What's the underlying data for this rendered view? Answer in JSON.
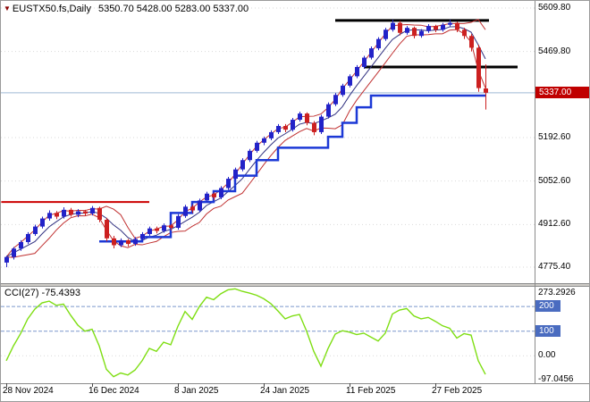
{
  "header": {
    "dropdown_icon": "▼",
    "symbol_timeframe": "EUSTX50.fs,Daily",
    "ohlc": "5350.70 5428.00 5283.00 5337.00",
    "open": "5350.70",
    "high": "5428.00",
    "low": "5283.00",
    "close": "5337.00"
  },
  "price_axis": {
    "labels": [
      {
        "text": "5609.80",
        "price": 5609.8
      },
      {
        "text": "5469.80",
        "price": 5469.8
      },
      {
        "text": "5192.60",
        "price": 5192.6
      },
      {
        "text": "5052.60",
        "price": 5052.6
      },
      {
        "text": "4912.60",
        "price": 4912.6
      },
      {
        "text": "4775.40",
        "price": 4775.4
      }
    ],
    "current": {
      "text": "5337.00",
      "price": 5337.0
    }
  },
  "time_axis": {
    "labels": [
      {
        "text": "28 Nov 2024",
        "bar": 0
      },
      {
        "text": "16 Dec 2024",
        "bar": 12
      },
      {
        "text": "8 Jan 2025",
        "bar": 24
      },
      {
        "text": "24 Jan 2025",
        "bar": 36
      },
      {
        "text": "11 Feb 2025",
        "bar": 48
      },
      {
        "text": "27 Feb 2025",
        "bar": 60
      }
    ]
  },
  "indicator": {
    "label": "CCI(27) -75.4393",
    "name": "CCI",
    "period": 27,
    "current_value": -75.4393,
    "axis_labels": [
      {
        "text": "273.2926",
        "value": 273.2926
      },
      {
        "text": "0.00",
        "value": 0
      },
      {
        "text": "-97.0456",
        "value": -97.0456
      }
    ],
    "level_badges": [
      {
        "text": "200",
        "value": 200
      },
      {
        "text": "100",
        "value": 100
      }
    ]
  },
  "colors": {
    "up": "#2222c8",
    "down": "#cc2020",
    "bands": "#c03030",
    "ma": "#303080",
    "step": "#1c39d6",
    "cci": "#7ede12",
    "grid": "#d9d9d9",
    "level_line": "#7b97cc",
    "current_line": "#9fb9d4",
    "badge_red": "#c00000",
    "badge_blue": "#4a6cc0",
    "separator": "#cfcdc8",
    "frame": "#8a8a8a",
    "dropdown_icon": "#8b0000"
  },
  "chart_data": {
    "type": "candlestick",
    "title": "EUSTX50.fs Daily with CCI(27)",
    "ylim_main": [
      4775.4,
      5609.8
    ],
    "ylim_indicator": [
      -97.0456,
      273.2926
    ],
    "candles_ohlc": [
      [
        4790,
        4812,
        4775,
        4808
      ],
      [
        4808,
        4840,
        4800,
        4835
      ],
      [
        4835,
        4862,
        4828,
        4856
      ],
      [
        4856,
        4888,
        4850,
        4882
      ],
      [
        4882,
        4912,
        4876,
        4906
      ],
      [
        4906,
        4938,
        4900,
        4932
      ],
      [
        4932,
        4958,
        4925,
        4950
      ],
      [
        4950,
        4956,
        4930,
        4938
      ],
      [
        4938,
        4968,
        4932,
        4960
      ],
      [
        4960,
        4966,
        4938,
        4944
      ],
      [
        4944,
        4962,
        4936,
        4955
      ],
      [
        4955,
        4960,
        4940,
        4948
      ],
      [
        4948,
        4972,
        4942,
        4966
      ],
      [
        4966,
        4970,
        4920,
        4928
      ],
      [
        4928,
        4934,
        4858,
        4868
      ],
      [
        4868,
        4876,
        4836,
        4846
      ],
      [
        4846,
        4868,
        4840,
        4862
      ],
      [
        4862,
        4866,
        4842,
        4850
      ],
      [
        4850,
        4872,
        4844,
        4866
      ],
      [
        4866,
        4888,
        4860,
        4882
      ],
      [
        4882,
        4906,
        4876,
        4900
      ],
      [
        4900,
        4906,
        4884,
        4892
      ],
      [
        4892,
        4916,
        4886,
        4910
      ],
      [
        4910,
        4914,
        4894,
        4902
      ],
      [
        4902,
        4946,
        4896,
        4940
      ],
      [
        4940,
        4976,
        4934,
        4970
      ],
      [
        4970,
        4976,
        4950,
        4958
      ],
      [
        4958,
        4996,
        4952,
        4990
      ],
      [
        4990,
        5018,
        4984,
        5012
      ],
      [
        5012,
        5016,
        4992,
        5000
      ],
      [
        5000,
        5036,
        4994,
        5030
      ],
      [
        5030,
        5066,
        5024,
        5060
      ],
      [
        5060,
        5096,
        5054,
        5090
      ],
      [
        5090,
        5126,
        5084,
        5120
      ],
      [
        5120,
        5156,
        5114,
        5150
      ],
      [
        5150,
        5182,
        5144,
        5176
      ],
      [
        5176,
        5196,
        5168,
        5190
      ],
      [
        5190,
        5216,
        5184,
        5210
      ],
      [
        5210,
        5236,
        5204,
        5230
      ],
      [
        5230,
        5236,
        5210,
        5218
      ],
      [
        5218,
        5256,
        5212,
        5250
      ],
      [
        5250,
        5276,
        5244,
        5270
      ],
      [
        5270,
        5274,
        5232,
        5240
      ],
      [
        5240,
        5246,
        5200,
        5210
      ],
      [
        5210,
        5266,
        5204,
        5260
      ],
      [
        5260,
        5306,
        5254,
        5300
      ],
      [
        5300,
        5336,
        5294,
        5330
      ],
      [
        5330,
        5366,
        5324,
        5360
      ],
      [
        5360,
        5396,
        5354,
        5390
      ],
      [
        5390,
        5426,
        5384,
        5420
      ],
      [
        5420,
        5456,
        5414,
        5450
      ],
      [
        5450,
        5486,
        5444,
        5480
      ],
      [
        5480,
        5516,
        5474,
        5510
      ],
      [
        5510,
        5546,
        5504,
        5540
      ],
      [
        5540,
        5572,
        5534,
        5562
      ],
      [
        5562,
        5568,
        5522,
        5530
      ],
      [
        5530,
        5552,
        5524,
        5546
      ],
      [
        5546,
        5550,
        5512,
        5520
      ],
      [
        5520,
        5542,
        5514,
        5536
      ],
      [
        5536,
        5558,
        5530,
        5552
      ],
      [
        5552,
        5556,
        5532,
        5540
      ],
      [
        5540,
        5562,
        5534,
        5556
      ],
      [
        5556,
        5572,
        5550,
        5562
      ],
      [
        5562,
        5566,
        5532,
        5540
      ],
      [
        5540,
        5546,
        5510,
        5520
      ],
      [
        5520,
        5526,
        5470,
        5482
      ],
      [
        5482,
        5492,
        5340,
        5352
      ],
      [
        5350.7,
        5428,
        5283,
        5337
      ]
    ],
    "indicator_cci": [
      -20,
      40,
      90,
      150,
      190,
      215,
      222,
      205,
      210,
      165,
      125,
      100,
      108,
      40,
      -55,
      -85,
      -70,
      -78,
      -58,
      -20,
      30,
      18,
      55,
      45,
      120,
      180,
      148,
      200,
      238,
      228,
      252,
      268,
      272,
      262,
      255,
      246,
      232,
      212,
      182,
      150,
      162,
      168,
      100,
      18,
      -42,
      30,
      88,
      102,
      96,
      86,
      92,
      76,
      60,
      92,
      170,
      186,
      192,
      162,
      150,
      156,
      140,
      122,
      112,
      72,
      90,
      84,
      -20,
      -75.4393
    ],
    "overlays": {
      "bollinger": {
        "period": 5,
        "deviation": 1.1
      },
      "ma_period": 5,
      "step_line": [
        {
          "from": 13,
          "to": 19,
          "price": 4858
        },
        {
          "from": 19,
          "to": 23,
          "price": 4872
        },
        {
          "from": 23,
          "to": 26,
          "price": 4950
        },
        {
          "from": 26,
          "to": 29,
          "price": 4985
        },
        {
          "from": 29,
          "to": 32,
          "price": 5020
        },
        {
          "from": 32,
          "to": 35,
          "price": 5070
        },
        {
          "from": 35,
          "to": 38,
          "price": 5120
        },
        {
          "from": 38,
          "to": 45,
          "price": 5160
        },
        {
          "from": 45,
          "to": 47,
          "price": 5195
        },
        {
          "from": 47,
          "to": 49,
          "price": 5240
        },
        {
          "from": 49,
          "to": 51,
          "price": 5290
        },
        {
          "from": 51,
          "to": 67,
          "price": 5328
        }
      ],
      "hlines": [
        {
          "price": 5570,
          "from_bar": 46,
          "to_bar": 67.5,
          "color": "#000000",
          "width": 3
        },
        {
          "price": 5420,
          "from_bar": 50,
          "to_bar": 71.5,
          "color": "#000000",
          "width": 3
        },
        {
          "price": 4985,
          "from_bar": -0.7,
          "to_bar": 20,
          "color": "#cc0000",
          "width": 2
        }
      ],
      "current_price_line": 5337.0,
      "cci_levels": [
        200,
        100
      ]
    }
  }
}
